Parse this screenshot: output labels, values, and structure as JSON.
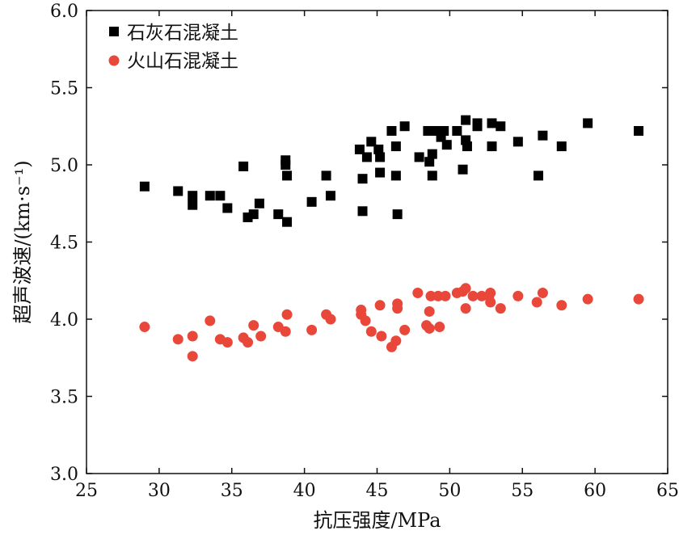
{
  "chart_data": {
    "type": "scatter",
    "title": "",
    "xlabel": "抗压强度/MPa",
    "ylabel": "超声波速/(km·s⁻¹)",
    "xlim": [
      25,
      65
    ],
    "ylim": [
      3.0,
      6.0
    ],
    "xticks": [
      "25",
      "30",
      "35",
      "40",
      "45",
      "50",
      "55",
      "60",
      "65"
    ],
    "yticks": [
      "3.0",
      "3.5",
      "4.0",
      "4.5",
      "5.0",
      "5.5",
      "6.0"
    ],
    "legend_position": "top-left",
    "series": [
      {
        "name": "石灰石混凝土",
        "marker": "square",
        "color": "#000000",
        "points": [
          [
            29.0,
            4.86
          ],
          [
            31.3,
            4.83
          ],
          [
            32.3,
            4.8
          ],
          [
            32.3,
            4.74
          ],
          [
            33.5,
            4.8
          ],
          [
            34.2,
            4.8
          ],
          [
            34.7,
            4.72
          ],
          [
            35.8,
            4.99
          ],
          [
            36.1,
            4.66
          ],
          [
            36.5,
            4.68
          ],
          [
            36.9,
            4.75
          ],
          [
            38.2,
            4.68
          ],
          [
            38.7,
            5.03
          ],
          [
            38.7,
            5.0
          ],
          [
            38.8,
            4.93
          ],
          [
            38.8,
            4.63
          ],
          [
            40.5,
            4.76
          ],
          [
            41.5,
            4.93
          ],
          [
            41.8,
            4.8
          ],
          [
            43.8,
            5.1
          ],
          [
            44.0,
            4.91
          ],
          [
            44.0,
            4.7
          ],
          [
            44.3,
            5.05
          ],
          [
            44.6,
            5.15
          ],
          [
            45.1,
            5.1
          ],
          [
            45.2,
            5.05
          ],
          [
            45.2,
            4.95
          ],
          [
            46.0,
            5.22
          ],
          [
            46.3,
            5.12
          ],
          [
            46.3,
            4.93
          ],
          [
            46.4,
            4.68
          ],
          [
            46.9,
            5.25
          ],
          [
            47.9,
            5.05
          ],
          [
            48.5,
            5.22
          ],
          [
            48.6,
            5.02
          ],
          [
            48.8,
            5.07
          ],
          [
            48.8,
            4.93
          ],
          [
            49.0,
            5.22
          ],
          [
            49.4,
            5.18
          ],
          [
            49.6,
            5.22
          ],
          [
            49.8,
            5.13
          ],
          [
            50.5,
            5.22
          ],
          [
            50.9,
            4.97
          ],
          [
            51.1,
            5.29
          ],
          [
            51.1,
            5.16
          ],
          [
            51.2,
            5.12
          ],
          [
            51.9,
            5.25
          ],
          [
            51.9,
            5.27
          ],
          [
            52.9,
            5.27
          ],
          [
            52.9,
            5.12
          ],
          [
            53.5,
            5.25
          ],
          [
            54.7,
            5.15
          ],
          [
            56.1,
            4.93
          ],
          [
            56.4,
            5.19
          ],
          [
            57.7,
            5.12
          ],
          [
            59.5,
            5.27
          ],
          [
            63.0,
            5.22
          ]
        ]
      },
      {
        "name": "火山石混凝土",
        "marker": "circle",
        "color": "#e8473a",
        "points": [
          [
            29.0,
            3.95
          ],
          [
            31.3,
            3.87
          ],
          [
            32.3,
            3.89
          ],
          [
            32.3,
            3.76
          ],
          [
            33.5,
            3.99
          ],
          [
            34.2,
            3.87
          ],
          [
            34.7,
            3.85
          ],
          [
            35.8,
            3.88
          ],
          [
            36.1,
            3.85
          ],
          [
            36.5,
            3.96
          ],
          [
            37.0,
            3.89
          ],
          [
            38.2,
            3.95
          ],
          [
            38.7,
            3.92
          ],
          [
            38.8,
            4.03
          ],
          [
            40.5,
            3.93
          ],
          [
            41.5,
            4.03
          ],
          [
            41.8,
            4.0
          ],
          [
            43.9,
            4.06
          ],
          [
            43.9,
            4.03
          ],
          [
            44.2,
            3.99
          ],
          [
            44.6,
            3.92
          ],
          [
            45.2,
            4.09
          ],
          [
            45.3,
            3.89
          ],
          [
            46.0,
            3.82
          ],
          [
            46.3,
            3.86
          ],
          [
            46.4,
            4.1
          ],
          [
            46.4,
            4.07
          ],
          [
            46.9,
            3.93
          ],
          [
            47.8,
            4.17
          ],
          [
            48.4,
            3.96
          ],
          [
            48.6,
            4.05
          ],
          [
            48.6,
            3.94
          ],
          [
            48.7,
            4.15
          ],
          [
            49.2,
            4.15
          ],
          [
            49.3,
            3.95
          ],
          [
            49.7,
            4.15
          ],
          [
            50.5,
            4.17
          ],
          [
            50.9,
            4.18
          ],
          [
            51.1,
            4.2
          ],
          [
            51.1,
            4.07
          ],
          [
            51.6,
            4.15
          ],
          [
            52.2,
            4.15
          ],
          [
            52.7,
            4.15
          ],
          [
            52.8,
            4.17
          ],
          [
            52.8,
            4.11
          ],
          [
            53.5,
            4.07
          ],
          [
            54.7,
            4.15
          ],
          [
            56.0,
            4.11
          ],
          [
            56.4,
            4.17
          ],
          [
            57.7,
            4.09
          ],
          [
            59.5,
            4.13
          ],
          [
            63.0,
            4.13
          ]
        ]
      }
    ]
  }
}
